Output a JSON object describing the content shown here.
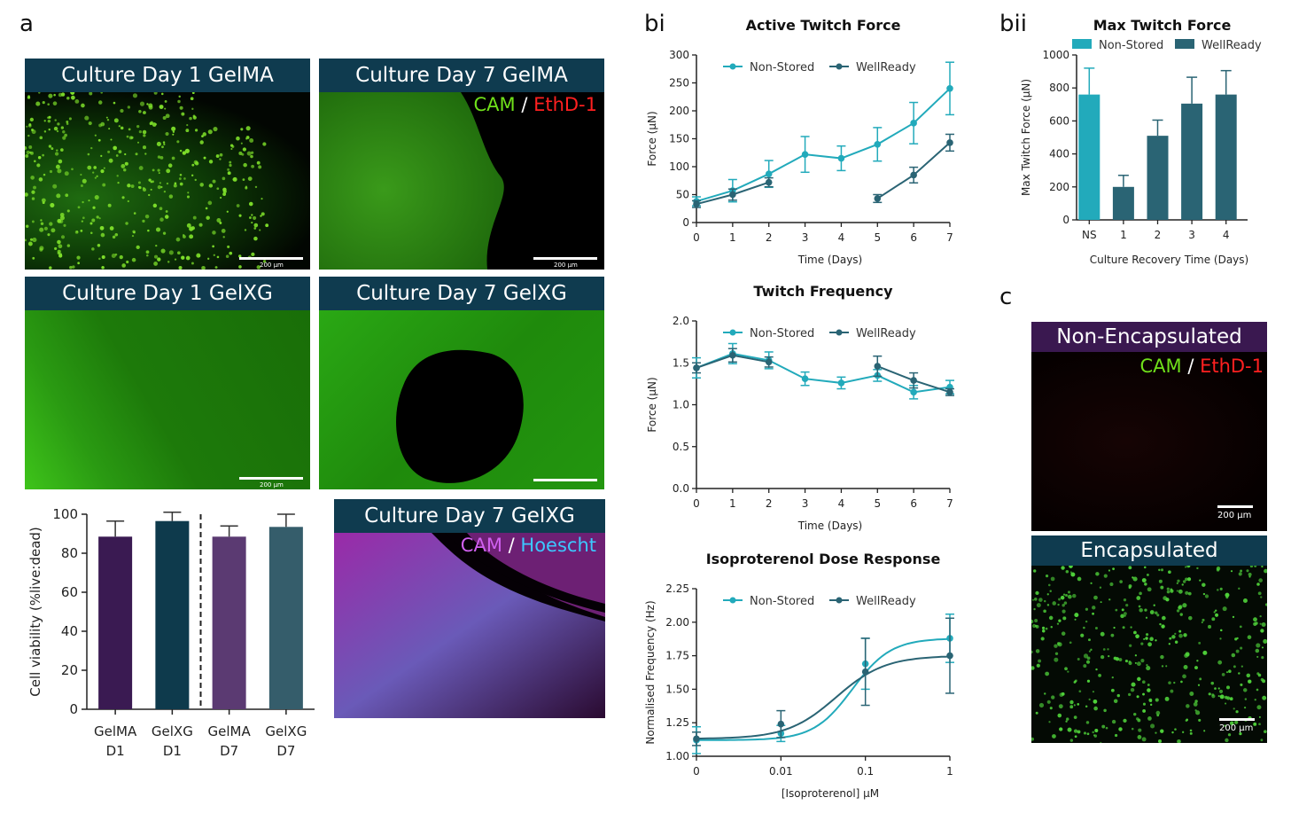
{
  "panel_labels": {
    "a": "a",
    "bi": "bi",
    "bii": "bii",
    "c": "c"
  },
  "micrographs": {
    "gelma_d1": {
      "title": "Culture Day 1 GelMA",
      "scale": "200 µm"
    },
    "gelma_d7": {
      "title": "Culture Day 7 GelMA",
      "stain_a": "CAM",
      "sep": "/",
      "stain_b": "EthD-1",
      "scale": "200 µm"
    },
    "gelxg_d1": {
      "title": "Culture Day 1 GelXG",
      "scale": "200 µm"
    },
    "gelxg_d7": {
      "title": "Culture Day 7 GelXG"
    },
    "gelxg_d7_hoescht": {
      "title": "Culture Day 7 GelXG",
      "stain_a": "CAM",
      "sep": "/",
      "stain_b": "Hoescht"
    },
    "non_encapsulated": {
      "title": "Non-Encapsulated",
      "stain_a": "CAM",
      "sep": "/",
      "stain_b": "EthD-1",
      "scale": "200 µm"
    },
    "encapsulated": {
      "title": "Encapsulated",
      "scale": "200 µm"
    }
  },
  "colors": {
    "non_stored": "#22aabb",
    "wellready": "#2a6474",
    "title_bar": "#0f3b4f",
    "purple_bar": "#3a1850"
  },
  "chart_data": [
    {
      "id": "viability",
      "type": "bar",
      "title": "",
      "categories": [
        [
          "GelMA",
          "D1"
        ],
        [
          "GelXG",
          "D1"
        ],
        [
          "GelMA",
          "D7"
        ],
        [
          "GelXG",
          "D7"
        ]
      ],
      "values": [
        88.5,
        96.5,
        88.5,
        93.5
      ],
      "errors": [
        8,
        4.5,
        5.5,
        6.5
      ],
      "bar_colors": [
        "#3a1a52",
        "#0e3a4c",
        "#5b3a72",
        "#355d6b"
      ],
      "ylabel": "Cell viability (%live:dead)",
      "ylim": [
        0,
        100
      ],
      "yticks": [
        0,
        20,
        40,
        60,
        80,
        100
      ]
    },
    {
      "id": "active_twitch",
      "type": "line",
      "title": "Active Twitch Force",
      "xlabel": "Time (Days)",
      "ylabel": "Force (µN)",
      "ylim": [
        0,
        300
      ],
      "yticks": [
        0,
        50,
        100,
        150,
        200,
        250,
        300
      ],
      "xticks": [
        0,
        1,
        2,
        3,
        4,
        5,
        6,
        7
      ],
      "series": [
        {
          "name": "Non-Stored",
          "x": [
            0,
            1,
            2,
            3,
            4,
            5,
            6,
            7
          ],
          "y": [
            38,
            57,
            87,
            122,
            115,
            140,
            178,
            240
          ],
          "err": [
            8,
            20,
            24,
            32,
            22,
            30,
            37,
            47
          ]
        },
        {
          "name": "WellReady",
          "x": [
            0,
            1,
            2
          ],
          "y": [
            33,
            50,
            72
          ],
          "err": [
            6,
            10,
            8
          ]
        },
        {
          "name": "WellReady",
          "x": [
            5,
            6,
            7
          ],
          "y": [
            43,
            85,
            143
          ],
          "err": [
            7,
            14,
            15
          ]
        }
      ]
    },
    {
      "id": "twitch_freq",
      "type": "line",
      "title": "Twitch  Frequency",
      "xlabel": "Time (Days)",
      "ylabel": "Force (µN)",
      "ylim": [
        0,
        2.0
      ],
      "yticks": [
        "0.0",
        "0.5",
        "1.0",
        "1.5",
        "2.0"
      ],
      "xticks": [
        0,
        1,
        2,
        3,
        4,
        5,
        6,
        7
      ],
      "series": [
        {
          "name": "Non-Stored",
          "x": [
            0,
            1,
            2,
            3,
            4,
            5,
            6,
            7
          ],
          "y": [
            1.44,
            1.61,
            1.53,
            1.31,
            1.26,
            1.35,
            1.15,
            1.21
          ],
          "err": [
            0.12,
            0.12,
            0.1,
            0.08,
            0.07,
            0.07,
            0.08,
            0.08
          ]
        },
        {
          "name": "WellReady",
          "x": [
            0,
            1,
            2
          ],
          "y": [
            1.44,
            1.59,
            1.51
          ],
          "err": [
            0.06,
            0.08,
            0.06
          ]
        },
        {
          "name": "WellReady",
          "x": [
            5,
            6,
            7
          ],
          "y": [
            1.46,
            1.29,
            1.15
          ],
          "err": [
            0.12,
            0.09,
            0.04
          ]
        }
      ]
    },
    {
      "id": "isoproterenol",
      "type": "line",
      "title": "Isoproterenol Dose Response",
      "xlabel": "[Isoproterenol] µM",
      "ylabel": "Normalised Frequency (Hz)",
      "ylim": [
        1.0,
        2.25
      ],
      "yticks": [
        "1.00",
        "1.25",
        "1.50",
        "1.75",
        "2.00",
        "2.25"
      ],
      "xticks": [
        "0",
        "0.01",
        "0.1",
        "1"
      ],
      "series": [
        {
          "name": "Non-Stored",
          "x": [
            0,
            0.01,
            0.1,
            1
          ],
          "y": [
            1.12,
            1.17,
            1.69,
            1.88
          ],
          "err": [
            0.1,
            0.06,
            0.19,
            0.18
          ]
        },
        {
          "name": "WellReady",
          "x": [
            0,
            0.01,
            0.1,
            1
          ],
          "y": [
            1.13,
            1.24,
            1.63,
            1.75
          ],
          "err": [
            0.05,
            0.1,
            0.25,
            0.28
          ]
        }
      ]
    },
    {
      "id": "max_twitch",
      "type": "bar",
      "title": "Max Twitch Force",
      "xlabel": "Culture Recovery Time (Days)",
      "ylabel": "Max Twitch Force (µN)",
      "categories": [
        "NS",
        "1",
        "2",
        "3",
        "4"
      ],
      "values": [
        760,
        200,
        510,
        705,
        760
      ],
      "errors": [
        160,
        70,
        95,
        160,
        145
      ],
      "bar_series": [
        "Non-Stored",
        "WellReady",
        "WellReady",
        "WellReady",
        "WellReady"
      ],
      "ylim": [
        0,
        1000
      ],
      "yticks": [
        0,
        200,
        400,
        600,
        800,
        1000
      ],
      "legend": [
        "Non-Stored",
        "WellReady"
      ]
    }
  ]
}
